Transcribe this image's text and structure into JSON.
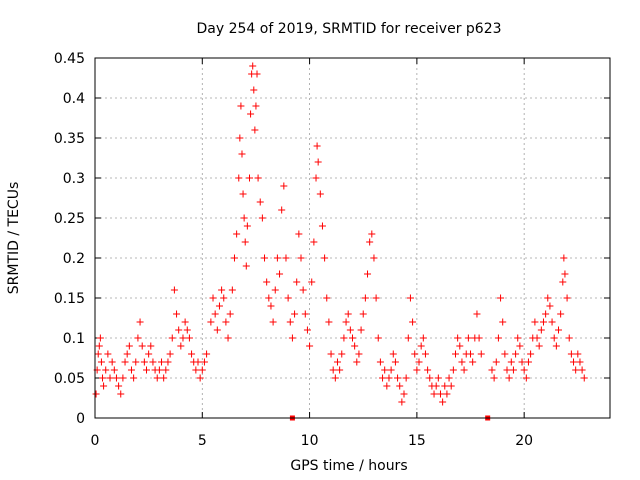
{
  "chart_data": {
    "type": "scatter",
    "title": "Day 254 of 2019, SRMTID for receiver p623",
    "xlabel": "GPS time / hours",
    "ylabel": "SRMTID / TECUs",
    "xlim": [
      0,
      24
    ],
    "ylim": [
      0,
      0.45
    ],
    "xticks": [
      0,
      5,
      10,
      15,
      20
    ],
    "xtick_labels": [
      "0",
      "5",
      "10",
      "15",
      "20"
    ],
    "yticks": [
      0,
      0.05,
      0.1,
      0.15,
      0.2,
      0.25,
      0.3,
      0.35,
      0.4,
      0.45
    ],
    "ytick_labels": [
      "0",
      "0.05",
      "0.1",
      "0.15",
      "0.2",
      "0.25",
      "0.3",
      "0.35",
      "0.4",
      "0.45"
    ],
    "grid": true,
    "marker": "+",
    "color": "#ff0000",
    "series": [
      {
        "name": "SRMTID",
        "points": [
          [
            0.05,
            0.03
          ],
          [
            0.1,
            0.06
          ],
          [
            0.15,
            0.08
          ],
          [
            0.2,
            0.09
          ],
          [
            0.25,
            0.1
          ],
          [
            0.3,
            0.07
          ],
          [
            0.35,
            0.05
          ],
          [
            0.4,
            0.04
          ],
          [
            0.5,
            0.06
          ],
          [
            0.6,
            0.08
          ],
          [
            0.7,
            0.05
          ],
          [
            0.8,
            0.07
          ],
          [
            0.9,
            0.06
          ],
          [
            1.0,
            0.05
          ],
          [
            1.1,
            0.04
          ],
          [
            1.2,
            0.03
          ],
          [
            1.3,
            0.05
          ],
          [
            1.4,
            0.07
          ],
          [
            1.5,
            0.08
          ],
          [
            1.6,
            0.09
          ],
          [
            1.7,
            0.06
          ],
          [
            1.8,
            0.05
          ],
          [
            1.9,
            0.07
          ],
          [
            2.0,
            0.1
          ],
          [
            2.1,
            0.12
          ],
          [
            2.2,
            0.09
          ],
          [
            2.3,
            0.07
          ],
          [
            2.4,
            0.06
          ],
          [
            2.5,
            0.08
          ],
          [
            2.6,
            0.09
          ],
          [
            2.7,
            0.07
          ],
          [
            2.8,
            0.06
          ],
          [
            2.9,
            0.05
          ],
          [
            3.0,
            0.06
          ],
          [
            3.1,
            0.07
          ],
          [
            3.2,
            0.05
          ],
          [
            3.3,
            0.06
          ],
          [
            3.4,
            0.07
          ],
          [
            3.5,
            0.08
          ],
          [
            3.6,
            0.1
          ],
          [
            3.7,
            0.16
          ],
          [
            3.8,
            0.13
          ],
          [
            3.9,
            0.11
          ],
          [
            4.0,
            0.09
          ],
          [
            4.1,
            0.1
          ],
          [
            4.2,
            0.12
          ],
          [
            4.3,
            0.11
          ],
          [
            4.4,
            0.1
          ],
          [
            4.5,
            0.08
          ],
          [
            4.6,
            0.07
          ],
          [
            4.7,
            0.06
          ],
          [
            4.8,
            0.07
          ],
          [
            4.9,
            0.05
          ],
          [
            5.0,
            0.06
          ],
          [
            5.1,
            0.07
          ],
          [
            5.2,
            0.08
          ],
          [
            5.4,
            0.12
          ],
          [
            5.5,
            0.15
          ],
          [
            5.6,
            0.13
          ],
          [
            5.7,
            0.11
          ],
          [
            5.8,
            0.14
          ],
          [
            5.9,
            0.16
          ],
          [
            6.0,
            0.15
          ],
          [
            6.1,
            0.12
          ],
          [
            6.2,
            0.1
          ],
          [
            6.3,
            0.13
          ],
          [
            6.4,
            0.16
          ],
          [
            6.5,
            0.2
          ],
          [
            6.6,
            0.23
          ],
          [
            6.7,
            0.3
          ],
          [
            6.75,
            0.35
          ],
          [
            6.8,
            0.39
          ],
          [
            6.85,
            0.33
          ],
          [
            6.9,
            0.28
          ],
          [
            6.95,
            0.25
          ],
          [
            7.0,
            0.22
          ],
          [
            7.05,
            0.19
          ],
          [
            7.1,
            0.24
          ],
          [
            7.2,
            0.3
          ],
          [
            7.25,
            0.38
          ],
          [
            7.3,
            0.43
          ],
          [
            7.35,
            0.44
          ],
          [
            7.4,
            0.41
          ],
          [
            7.45,
            0.36
          ],
          [
            7.5,
            0.39
          ],
          [
            7.55,
            0.43
          ],
          [
            7.6,
            0.3
          ],
          [
            7.7,
            0.27
          ],
          [
            7.8,
            0.25
          ],
          [
            7.9,
            0.2
          ],
          [
            8.0,
            0.17
          ],
          [
            8.1,
            0.15
          ],
          [
            8.2,
            0.14
          ],
          [
            8.3,
            0.12
          ],
          [
            8.4,
            0.16
          ],
          [
            8.5,
            0.2
          ],
          [
            8.6,
            0.18
          ],
          [
            8.7,
            0.26
          ],
          [
            8.8,
            0.29
          ],
          [
            8.9,
            0.2
          ],
          [
            9.0,
            0.15
          ],
          [
            9.1,
            0.12
          ],
          [
            9.2,
            0.1
          ],
          [
            9.3,
            0.13
          ],
          [
            9.4,
            0.17
          ],
          [
            9.5,
            0.23
          ],
          [
            9.6,
            0.2
          ],
          [
            9.7,
            0.16
          ],
          [
            9.8,
            0.13
          ],
          [
            9.9,
            0.11
          ],
          [
            10.0,
            0.09
          ],
          [
            10.1,
            0.17
          ],
          [
            10.2,
            0.22
          ],
          [
            10.3,
            0.3
          ],
          [
            10.35,
            0.34
          ],
          [
            10.4,
            0.32
          ],
          [
            10.5,
            0.28
          ],
          [
            10.6,
            0.24
          ],
          [
            10.7,
            0.2
          ],
          [
            10.8,
            0.15
          ],
          [
            10.9,
            0.12
          ],
          [
            11.0,
            0.08
          ],
          [
            11.1,
            0.06
          ],
          [
            11.2,
            0.05
          ],
          [
            11.3,
            0.07
          ],
          [
            11.4,
            0.06
          ],
          [
            11.5,
            0.08
          ],
          [
            11.6,
            0.1
          ],
          [
            11.7,
            0.12
          ],
          [
            11.8,
            0.13
          ],
          [
            11.9,
            0.11
          ],
          [
            12.0,
            0.1
          ],
          [
            12.1,
            0.09
          ],
          [
            12.2,
            0.07
          ],
          [
            12.3,
            0.08
          ],
          [
            12.4,
            0.11
          ],
          [
            12.5,
            0.13
          ],
          [
            12.6,
            0.15
          ],
          [
            12.7,
            0.18
          ],
          [
            12.8,
            0.22
          ],
          [
            12.9,
            0.23
          ],
          [
            13.0,
            0.2
          ],
          [
            13.1,
            0.15
          ],
          [
            13.2,
            0.1
          ],
          [
            13.3,
            0.07
          ],
          [
            13.4,
            0.05
          ],
          [
            13.5,
            0.06
          ],
          [
            13.6,
            0.04
          ],
          [
            13.7,
            0.05
          ],
          [
            13.8,
            0.06
          ],
          [
            13.9,
            0.08
          ],
          [
            14.0,
            0.07
          ],
          [
            14.1,
            0.05
          ],
          [
            14.2,
            0.04
          ],
          [
            14.3,
            0.02
          ],
          [
            14.4,
            0.03
          ],
          [
            14.5,
            0.05
          ],
          [
            14.6,
            0.1
          ],
          [
            14.7,
            0.15
          ],
          [
            14.8,
            0.12
          ],
          [
            14.9,
            0.08
          ],
          [
            15.0,
            0.06
          ],
          [
            15.1,
            0.07
          ],
          [
            15.2,
            0.09
          ],
          [
            15.3,
            0.1
          ],
          [
            15.4,
            0.08
          ],
          [
            15.5,
            0.06
          ],
          [
            15.6,
            0.05
          ],
          [
            15.7,
            0.04
          ],
          [
            15.8,
            0.03
          ],
          [
            15.9,
            0.04
          ],
          [
            16.0,
            0.05
          ],
          [
            16.1,
            0.03
          ],
          [
            16.2,
            0.02
          ],
          [
            16.3,
            0.04
          ],
          [
            16.4,
            0.03
          ],
          [
            16.5,
            0.05
          ],
          [
            16.6,
            0.04
          ],
          [
            16.7,
            0.06
          ],
          [
            16.8,
            0.08
          ],
          [
            16.9,
            0.1
          ],
          [
            17.0,
            0.09
          ],
          [
            17.1,
            0.07
          ],
          [
            17.2,
            0.06
          ],
          [
            17.3,
            0.08
          ],
          [
            17.4,
            0.1
          ],
          [
            17.5,
            0.08
          ],
          [
            17.6,
            0.07
          ],
          [
            17.7,
            0.1
          ],
          [
            17.8,
            0.13
          ],
          [
            17.9,
            0.1
          ],
          [
            18.0,
            0.08
          ],
          [
            18.5,
            0.06
          ],
          [
            18.6,
            0.05
          ],
          [
            18.7,
            0.07
          ],
          [
            18.8,
            0.1
          ],
          [
            18.9,
            0.15
          ],
          [
            19.0,
            0.12
          ],
          [
            19.1,
            0.08
          ],
          [
            19.2,
            0.06
          ],
          [
            19.3,
            0.05
          ],
          [
            19.4,
            0.07
          ],
          [
            19.5,
            0.06
          ],
          [
            19.6,
            0.08
          ],
          [
            19.7,
            0.1
          ],
          [
            19.8,
            0.09
          ],
          [
            19.9,
            0.07
          ],
          [
            20.0,
            0.06
          ],
          [
            20.1,
            0.05
          ],
          [
            20.2,
            0.07
          ],
          [
            20.3,
            0.08
          ],
          [
            20.4,
            0.1
          ],
          [
            20.5,
            0.12
          ],
          [
            20.6,
            0.1
          ],
          [
            20.7,
            0.09
          ],
          [
            20.8,
            0.11
          ],
          [
            20.9,
            0.12
          ],
          [
            21.0,
            0.13
          ],
          [
            21.1,
            0.15
          ],
          [
            21.2,
            0.14
          ],
          [
            21.3,
            0.12
          ],
          [
            21.4,
            0.1
          ],
          [
            21.5,
            0.09
          ],
          [
            21.6,
            0.11
          ],
          [
            21.7,
            0.13
          ],
          [
            21.8,
            0.17
          ],
          [
            21.85,
            0.2
          ],
          [
            21.9,
            0.18
          ],
          [
            22.0,
            0.15
          ],
          [
            22.1,
            0.1
          ],
          [
            22.2,
            0.08
          ],
          [
            22.3,
            0.07
          ],
          [
            22.4,
            0.06
          ],
          [
            22.5,
            0.08
          ],
          [
            22.6,
            0.07
          ],
          [
            22.7,
            0.06
          ],
          [
            22.8,
            0.05
          ]
        ]
      }
    ],
    "gap_markers": [
      [
        9.2,
        0.0
      ],
      [
        18.3,
        0.0
      ]
    ]
  }
}
